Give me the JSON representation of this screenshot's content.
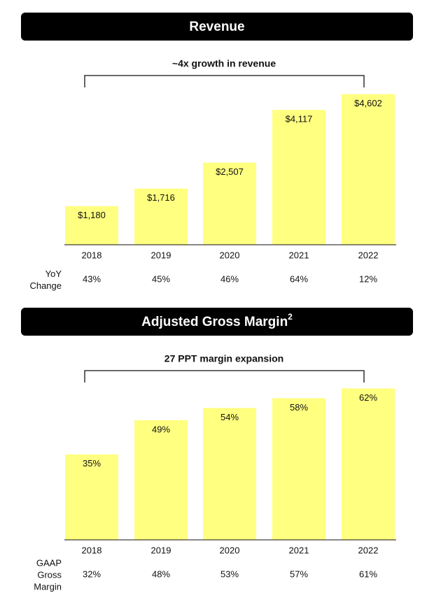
{
  "chart_data": [
    {
      "type": "bar",
      "title": "Revenue",
      "annotation": "~4x growth in revenue",
      "categories": [
        "2018",
        "2019",
        "2020",
        "2021",
        "2022"
      ],
      "values": [
        1180,
        1716,
        2507,
        4117,
        4602
      ],
      "value_labels": [
        "$1,180",
        "$1,716",
        "$2,507",
        "$4,117",
        "$4,602"
      ],
      "color": "#ffff80",
      "ylim": [
        0,
        4700
      ],
      "row": {
        "label": "YoY Change",
        "values": [
          "43%",
          "45%",
          "46%",
          "64%",
          "12%"
        ]
      }
    },
    {
      "type": "bar",
      "title": "Adjusted Gross Margin",
      "title_superscript": "2",
      "annotation": "27 PPT margin expansion",
      "categories": [
        "2018",
        "2019",
        "2020",
        "2021",
        "2022"
      ],
      "values": [
        35,
        49,
        54,
        58,
        62
      ],
      "value_labels": [
        "35%",
        "49%",
        "54%",
        "58%",
        "62%"
      ],
      "color": "#ffff80",
      "ylim": [
        0,
        63
      ],
      "row": {
        "label": "GAAP Gross Margin",
        "values": [
          "32%",
          "48%",
          "53%",
          "57%",
          "61%"
        ]
      }
    }
  ]
}
